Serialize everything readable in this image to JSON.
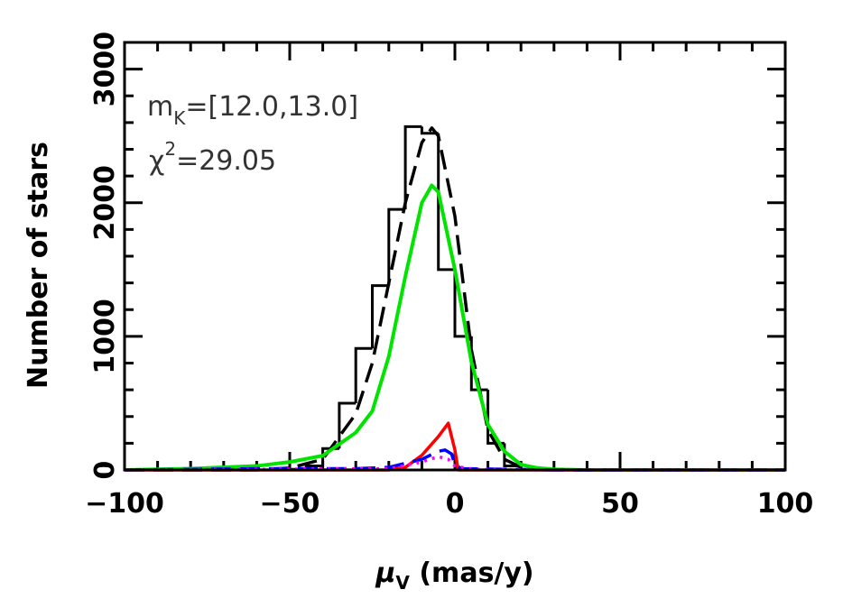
{
  "chart_data": {
    "type": "histogram",
    "xlabel": [
      "μ",
      "V",
      " (mas/y)"
    ],
    "ylabel": "Number of stars",
    "annotations": [
      [
        "m",
        "K",
        "=[12.0,13.0]"
      ],
      [
        "χ",
        "2",
        "=29.05"
      ]
    ],
    "xlim": [
      -100,
      100
    ],
    "ylim": [
      0,
      3200
    ],
    "xticks": [
      {
        "value": -100,
        "label": "−100"
      },
      {
        "value": -50,
        "label": "−50"
      },
      0,
      50,
      100
    ],
    "yticks": [
      0,
      1000,
      2000,
      3000
    ],
    "xminorticks": [
      -90,
      -80,
      -70,
      -60,
      -40,
      -30,
      -20,
      -10,
      10,
      20,
      30,
      40,
      60,
      70,
      80,
      90
    ],
    "yminorticks": [
      200,
      400,
      600,
      800,
      1200,
      1400,
      1600,
      1800,
      2200,
      2400,
      2600,
      2800
    ],
    "bins": [
      -50,
      -45,
      -40,
      -35,
      -30,
      -25,
      -20,
      -15,
      -10,
      -5,
      0,
      5,
      10,
      15,
      20,
      25
    ],
    "counts": [
      5,
      30,
      160,
      500,
      910,
      1380,
      1950,
      2570,
      2520,
      1500,
      1000,
      600,
      200,
      30,
      5
    ],
    "color": "#000000",
    "lines": [
      {
        "color": "#000000",
        "dash": "dashed",
        "x": [
          -100,
          -60,
          -50,
          -40,
          -30,
          -25,
          -20,
          -15,
          -10,
          -7,
          -5,
          0,
          5,
          10,
          15,
          20,
          25,
          40,
          100
        ],
        "values": [
          0,
          0,
          15,
          80,
          420,
          800,
          1400,
          2000,
          2450,
          2560,
          2500,
          1900,
          900,
          300,
          80,
          20,
          5,
          0,
          0
        ]
      },
      {
        "color": "#00e400",
        "dash": "solid",
        "x": [
          -100,
          -80,
          -60,
          -50,
          -40,
          -30,
          -25,
          -20,
          -15,
          -10,
          -7,
          -5,
          0,
          5,
          10,
          15,
          20,
          25,
          30,
          40,
          60,
          100
        ],
        "values": [
          0,
          10,
          30,
          60,
          107,
          280,
          440,
          850,
          1450,
          2000,
          2130,
          2080,
          1500,
          810,
          340,
          140,
          40,
          15,
          5,
          0,
          0,
          0
        ]
      },
      {
        "color": "#ff0000",
        "dash": "solid",
        "x": [
          -100,
          -20,
          -15,
          -10,
          -5,
          -2,
          0,
          1,
          100
        ],
        "values": [
          0,
          0,
          20,
          110,
          250,
          350,
          150,
          0,
          0
        ]
      },
      {
        "color": "#0000ff",
        "dash": "dashed",
        "x": [
          -100,
          -60,
          -30,
          -20,
          -10,
          -5,
          -3,
          -1,
          0,
          2,
          30,
          100
        ],
        "values": [
          0,
          10,
          10,
          20,
          80,
          140,
          150,
          120,
          40,
          10,
          0,
          0
        ]
      },
      {
        "color": "#ff00ff",
        "dash": "dotted",
        "x": [
          -100,
          -60,
          -20,
          -10,
          -5,
          -2,
          0,
          5,
          30,
          100
        ],
        "values": [
          0,
          5,
          10,
          60,
          100,
          80,
          30,
          5,
          0,
          0
        ]
      }
    ]
  }
}
